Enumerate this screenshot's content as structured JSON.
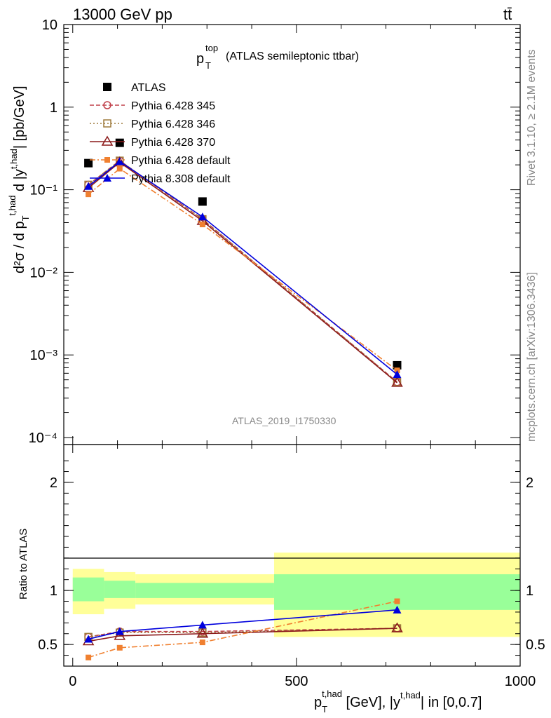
{
  "header": {
    "energy_label": "13000 GeV pp",
    "process_label": "tt̄"
  },
  "side_labels": {
    "rivet": "Rivet 3.1.10, ≥ 2.1M events",
    "mcplots": "mcplots.cern.ch [arXiv:1306.3436]"
  },
  "chart_data": {
    "type": "line",
    "title_main": "p",
    "title_sub": "T",
    "title_sup": "top",
    "title_rest": "(ATLAS semileptonic ttbar)",
    "analysis_tag": "ATLAS_2019_I1750330",
    "ylabel_main": "d²σ / d p_T^{t,had} d |y^{t,had}| [pb/GeV]",
    "ylabel_ratio": "Ratio to ATLAS",
    "xlabel": "p_T^{t,had} [GeV], |y^{t,had}| in [0,0.7]",
    "xlim": [
      -20,
      1000
    ],
    "ylim_main": [
      0.0001,
      10
    ],
    "yscale_main": "log",
    "ylim_ratio": [
      0.3,
      2.35
    ],
    "x_ticks": [
      "0",
      "500",
      "1000"
    ],
    "y_ticks_main": [
      "10⁻⁴",
      "10⁻³",
      "10⁻²",
      "10⁻¹",
      "1",
      "10"
    ],
    "y_ticks_ratio": [
      "0.5",
      "1",
      "2"
    ],
    "x": [
      35,
      105,
      290,
      725
    ],
    "bins": [
      [
        0,
        70
      ],
      [
        70,
        140
      ],
      [
        140,
        450
      ],
      [
        450,
        1000
      ]
    ],
    "series": [
      {
        "name": "ATLAS",
        "values": [
          0.21,
          0.37,
          0.072,
          0.00075
        ],
        "ratio": [
          1,
          1,
          1,
          1
        ],
        "color": "#000000",
        "marker": "square",
        "dash": "none"
      },
      {
        "name": "Pythia 6.428 345",
        "values": [
          0.115,
          0.225,
          0.044,
          0.00047
        ],
        "ratio": [
          0.57,
          0.62,
          0.62,
          0.65
        ],
        "color": "#c0404a",
        "marker": "circle-open",
        "dash": "6,3"
      },
      {
        "name": "Pythia 6.428 346",
        "values": [
          0.115,
          0.225,
          0.044,
          0.00047
        ],
        "ratio": [
          0.57,
          0.61,
          0.61,
          0.65
        ],
        "color": "#9e7a3c",
        "marker": "square-open",
        "dash": "2,3"
      },
      {
        "name": "Pythia 6.428 370",
        "values": [
          0.105,
          0.215,
          0.042,
          0.00046
        ],
        "ratio": [
          0.53,
          0.58,
          0.6,
          0.65
        ],
        "color": "#8b1a1a",
        "marker": "triangle-open",
        "dash": "none"
      },
      {
        "name": "Pythia 6.428 default",
        "values": [
          0.088,
          0.18,
          0.038,
          0.00065
        ],
        "ratio": [
          0.38,
          0.47,
          0.52,
          0.9
        ],
        "color": "#f08030",
        "marker": "square-small",
        "dash": "8,3,2,3"
      },
      {
        "name": "Pythia 8.308 default",
        "values": [
          0.11,
          0.22,
          0.047,
          0.00058
        ],
        "ratio": [
          0.55,
          0.62,
          0.68,
          0.82
        ],
        "color": "#0000dd",
        "marker": "triangle",
        "dash": "none"
      }
    ],
    "bands": {
      "green": [
        [
          0.9,
          1.12
        ],
        [
          0.93,
          1.09
        ],
        [
          0.93,
          1.07
        ],
        [
          0.82,
          1.15
        ]
      ],
      "yellow": [
        [
          0.78,
          1.2
        ],
        [
          0.83,
          1.17
        ],
        [
          0.87,
          1.15
        ],
        [
          0.57,
          1.35
        ]
      ],
      "green_color": "#99ff99",
      "yellow_color": "#ffff99"
    }
  }
}
